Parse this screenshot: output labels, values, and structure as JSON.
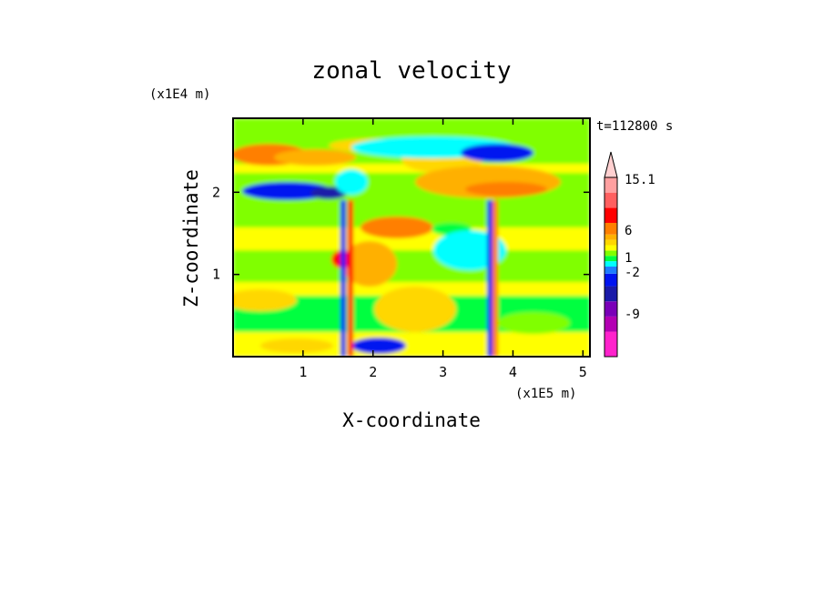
{
  "chart_data": {
    "type": "heatmap",
    "title": "zonal velocity",
    "xlabel": "X-coordinate",
    "ylabel": "Z-coordinate",
    "x_unit": "(x1E5 m)",
    "y_unit": "(x1E4 m)",
    "time_label": "t=112800 s",
    "xlim": [
      0,
      5.1
    ],
    "ylim": [
      0,
      2.9
    ],
    "x_ticks": [
      1,
      2,
      3,
      4,
      5
    ],
    "y_ticks": [
      1,
      2
    ],
    "colorbar": {
      "labels": [
        "15.1",
        "6",
        "1",
        "-2",
        "-9"
      ],
      "levels": [
        {
          "color": "#ff22cc"
        },
        {
          "color": "#b300b3"
        },
        {
          "color": "#7a00b8"
        },
        {
          "color": "#1a1aa8"
        },
        {
          "color": "#0014f0"
        },
        {
          "color": "#1e7cff"
        },
        {
          "color": "#00ffff"
        },
        {
          "color": "#00ff40"
        },
        {
          "color": "#80ff00"
        },
        {
          "color": "#ffff00"
        },
        {
          "color": "#ffd700"
        },
        {
          "color": "#ffb000"
        },
        {
          "color": "#ff7f00"
        },
        {
          "color": "#ff0000"
        },
        {
          "color": "#ff6060"
        },
        {
          "color": "#ffa0a0"
        },
        {
          "color": "#ffd0d0"
        }
      ],
      "extend_top": true
    }
  }
}
